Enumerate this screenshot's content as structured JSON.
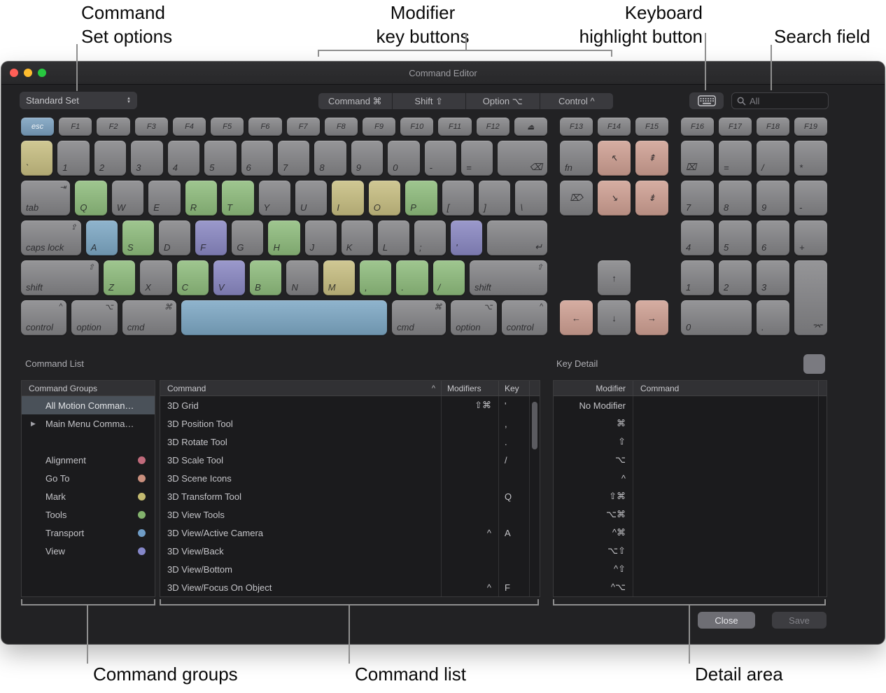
{
  "annotations": {
    "command_set": {
      "lines": [
        "Command",
        "Set options"
      ]
    },
    "modifier_keys": {
      "lines": [
        "Modifier",
        "key buttons"
      ]
    },
    "keyboard_highlight": {
      "lines": [
        "Keyboard",
        "highlight button"
      ]
    },
    "search_field": {
      "lines": [
        "Search field"
      ]
    },
    "command_groups": {
      "lines": [
        "Command groups"
      ]
    },
    "command_list": {
      "lines": [
        "Command list"
      ]
    },
    "detail_area": {
      "lines": [
        "Detail area"
      ]
    }
  },
  "window": {
    "title": "Command Editor",
    "toolbar": {
      "command_set_value": "Standard Set",
      "modifiers": [
        {
          "label": "Command",
          "symbol": "⌘"
        },
        {
          "label": "Shift",
          "symbol": "⇧"
        },
        {
          "label": "Option",
          "symbol": "⌥"
        },
        {
          "label": "Control",
          "symbol": "^"
        }
      ],
      "search_placeholder": "All"
    },
    "section_labels": {
      "command_list": "Command List",
      "key_detail": "Key Detail"
    },
    "buttons": {
      "close": "Close",
      "save": "Save"
    }
  },
  "colors": {
    "keys": {
      "gray": "#848487",
      "esc": "#7ba1c0",
      "tools": "#8fbd7d",
      "mark": "#c8bf82",
      "transport": "#7da8c5",
      "view": "#8a88c3",
      "go_to": "#cfa093"
    },
    "categories": {
      "alignment": "#c06a7b",
      "go_to": "#c98f7d",
      "mark": "#c3ba70",
      "tools": "#83b36d",
      "transport": "#6f9cc6",
      "view": "#8587c9"
    }
  },
  "keyboard": {
    "main": [
      [
        {
          "l": "esc",
          "c": "esc",
          "p": "c",
          "n": "esc"
        },
        {
          "l": "F1",
          "p": "c"
        },
        {
          "l": "F2",
          "p": "c"
        },
        {
          "l": "F3",
          "p": "c"
        },
        {
          "l": "F4",
          "p": "c"
        },
        {
          "l": "F5",
          "p": "c"
        },
        {
          "l": "F6",
          "p": "c"
        },
        {
          "l": "F7",
          "p": "c"
        },
        {
          "l": "F8",
          "p": "c"
        },
        {
          "l": "F9",
          "p": "c"
        },
        {
          "l": "F10",
          "p": "c"
        },
        {
          "l": "F11",
          "p": "c"
        },
        {
          "l": "F12",
          "p": "c"
        },
        {
          "l": "⏏",
          "p": "c",
          "n": "eject"
        }
      ],
      [
        {
          "l": "`",
          "c": "mark",
          "n": "backtick"
        },
        {
          "l": "1"
        },
        {
          "l": "2"
        },
        {
          "l": "3"
        },
        {
          "l": "4"
        },
        {
          "l": "5"
        },
        {
          "l": "6"
        },
        {
          "l": "7"
        },
        {
          "l": "8"
        },
        {
          "l": "9"
        },
        {
          "l": "0"
        },
        {
          "l": "-",
          "n": "minus"
        },
        {
          "l": "=",
          "n": "equals"
        },
        {
          "l": "⌫",
          "w": 1.55,
          "p": "br",
          "n": "delete"
        }
      ],
      [
        {
          "l": "tab",
          "s": "⇥",
          "w": 1.55,
          "n": "tab"
        },
        {
          "l": "Q",
          "c": "tools"
        },
        {
          "l": "W"
        },
        {
          "l": "E"
        },
        {
          "l": "R",
          "c": "tools"
        },
        {
          "l": "T",
          "c": "tools"
        },
        {
          "l": "Y"
        },
        {
          "l": "U"
        },
        {
          "l": "I",
          "c": "mark"
        },
        {
          "l": "O",
          "c": "mark"
        },
        {
          "l": "P",
          "c": "tools"
        },
        {
          "l": "[",
          "n": "left-bracket"
        },
        {
          "l": "]",
          "n": "right-bracket"
        },
        {
          "l": "\\",
          "n": "backslash"
        }
      ],
      [
        {
          "l": "caps lock",
          "s": "⇪",
          "w": 1.9,
          "n": "caps-lock"
        },
        {
          "l": "A",
          "c": "transport"
        },
        {
          "l": "S",
          "c": "tools"
        },
        {
          "l": "D"
        },
        {
          "l": "F",
          "c": "view"
        },
        {
          "l": "G"
        },
        {
          "l": "H",
          "c": "tools"
        },
        {
          "l": "J"
        },
        {
          "l": "K"
        },
        {
          "l": "L"
        },
        {
          "l": ";",
          "n": "semicolon"
        },
        {
          "l": "'",
          "c": "view",
          "n": "quote"
        },
        {
          "l": "↵",
          "w": 1.9,
          "p": "br",
          "n": "return"
        }
      ],
      [
        {
          "l": "shift",
          "s": "⇧",
          "w": 2.45,
          "n": "shift-left"
        },
        {
          "l": "Z",
          "c": "tools"
        },
        {
          "l": "X"
        },
        {
          "l": "C",
          "c": "tools"
        },
        {
          "l": "V",
          "c": "view"
        },
        {
          "l": "B",
          "c": "tools"
        },
        {
          "l": "N"
        },
        {
          "l": "M",
          "c": "mark"
        },
        {
          "l": ",",
          "c": "tools",
          "n": "comma"
        },
        {
          "l": ".",
          "c": "tools",
          "n": "period"
        },
        {
          "l": "/",
          "c": "tools",
          "n": "slash"
        },
        {
          "l": "shift",
          "s": "⇧",
          "w": 2.45,
          "n": "shift-right"
        }
      ],
      [
        {
          "l": "control",
          "s": "^",
          "w": 1.4,
          "n": "control-left"
        },
        {
          "l": "option",
          "s": "⌥",
          "w": 1.4,
          "n": "option-left"
        },
        {
          "l": "cmd",
          "s": "⌘",
          "w": 1.65,
          "n": "cmd-left"
        },
        {
          "l": "",
          "c": "transport",
          "w": 6.3,
          "n": "space"
        },
        {
          "l": "cmd",
          "s": "⌘",
          "w": 1.65,
          "n": "cmd-right"
        },
        {
          "l": "option",
          "s": "⌥",
          "w": 1.4,
          "n": "option-right"
        },
        {
          "l": "control",
          "s": "^",
          "w": 1.4,
          "n": "control-right"
        }
      ]
    ],
    "nav": [
      {
        "l": "F13",
        "p": "c",
        "gr": 1,
        "gc": 1
      },
      {
        "l": "F14",
        "p": "c",
        "gr": 1,
        "gc": 2
      },
      {
        "l": "F15",
        "p": "c",
        "gr": 1,
        "gc": 3
      },
      {
        "l": "fn",
        "gr": 2,
        "gc": 1,
        "n": "fn"
      },
      {
        "l": "↖",
        "c": "go_to",
        "p": "c",
        "gr": 2,
        "gc": 2,
        "n": "home"
      },
      {
        "l": "⇞",
        "c": "go_to",
        "p": "c",
        "gr": 2,
        "gc": 3,
        "n": "page-up"
      },
      {
        "l": "⌦",
        "p": "c",
        "gr": 3,
        "gc": 1,
        "n": "forward-delete"
      },
      {
        "l": "↘",
        "c": "go_to",
        "p": "c",
        "gr": 3,
        "gc": 2,
        "n": "end"
      },
      {
        "l": "⇟",
        "c": "go_to",
        "p": "c",
        "gr": 3,
        "gc": 3,
        "n": "page-down"
      },
      {
        "l": "↑",
        "p": "c",
        "gr": 5,
        "gc": 2,
        "n": "arrow-up"
      },
      {
        "l": "←",
        "c": "go_to",
        "p": "c",
        "gr": 6,
        "gc": 1,
        "n": "arrow-left"
      },
      {
        "l": "↓",
        "p": "c",
        "gr": 6,
        "gc": 2,
        "n": "arrow-down"
      },
      {
        "l": "→",
        "c": "go_to",
        "p": "c",
        "gr": 6,
        "gc": 3,
        "n": "arrow-right"
      }
    ],
    "numpad": [
      {
        "l": "F16",
        "p": "c",
        "gr": 1,
        "gc": 1
      },
      {
        "l": "F17",
        "p": "c",
        "gr": 1,
        "gc": 2
      },
      {
        "l": "F18",
        "p": "c",
        "gr": 1,
        "gc": 3
      },
      {
        "l": "F19",
        "p": "c",
        "gr": 1,
        "gc": 4
      },
      {
        "l": "⌧",
        "gr": 2,
        "gc": 1,
        "n": "numpad-clear"
      },
      {
        "l": "=",
        "gr": 2,
        "gc": 2,
        "n": "numpad-equals"
      },
      {
        "l": "/",
        "gr": 2,
        "gc": 3,
        "n": "numpad-divide"
      },
      {
        "l": "*",
        "gr": 2,
        "gc": 4,
        "n": "numpad-multiply"
      },
      {
        "l": "7",
        "gr": 3,
        "gc": 1,
        "n": "numpad-7"
      },
      {
        "l": "8",
        "gr": 3,
        "gc": 2,
        "n": "numpad-8"
      },
      {
        "l": "9",
        "gr": 3,
        "gc": 3,
        "n": "numpad-9"
      },
      {
        "l": "-",
        "gr": 3,
        "gc": 4,
        "n": "numpad-minus"
      },
      {
        "l": "4",
        "gr": 4,
        "gc": 1,
        "n": "numpad-4"
      },
      {
        "l": "5",
        "gr": 4,
        "gc": 2,
        "n": "numpad-5"
      },
      {
        "l": "6",
        "gr": 4,
        "gc": 3,
        "n": "numpad-6"
      },
      {
        "l": "+",
        "gr": 4,
        "gc": 4,
        "n": "numpad-plus"
      },
      {
        "l": "1",
        "gr": 5,
        "gc": 1,
        "n": "numpad-1"
      },
      {
        "l": "2",
        "gr": 5,
        "gc": 2,
        "n": "numpad-2"
      },
      {
        "l": "3",
        "gr": 5,
        "gc": 3,
        "n": "numpad-3"
      },
      {
        "l": "⌤",
        "gr": 5,
        "gc": 4,
        "rs": 2,
        "p": "br",
        "n": "numpad-enter"
      },
      {
        "l": "0",
        "gr": 6,
        "gc": 1,
        "cs": 2,
        "n": "numpad-0"
      },
      {
        "l": ".",
        "gr": 6,
        "gc": 3,
        "n": "numpad-point"
      }
    ]
  },
  "command_groups": {
    "header": "Command Groups",
    "rows": [
      {
        "label": "All Motion Comman…",
        "selected": true
      },
      {
        "label": "Main Menu Comma…",
        "disclosure": true
      },
      {
        "spacer": true
      },
      {
        "label": "Alignment",
        "dot": "alignment"
      },
      {
        "label": "Go To",
        "dot": "go_to"
      },
      {
        "label": "Mark",
        "dot": "mark"
      },
      {
        "label": "Tools",
        "dot": "tools"
      },
      {
        "label": "Transport",
        "dot": "transport"
      },
      {
        "label": "View",
        "dot": "view"
      }
    ]
  },
  "command_table": {
    "columns": [
      "Command",
      "Modifiers",
      "Key"
    ],
    "sort_indicator": "^",
    "rows": [
      {
        "command": "3D Grid",
        "modifiers": "⇧⌘",
        "key": "'"
      },
      {
        "command": "3D Position Tool",
        "modifiers": "",
        "key": ","
      },
      {
        "command": "3D Rotate Tool",
        "modifiers": "",
        "key": "."
      },
      {
        "command": "3D Scale Tool",
        "modifiers": "",
        "key": "/"
      },
      {
        "command": "3D Scene Icons",
        "modifiers": "",
        "key": ""
      },
      {
        "command": "3D Transform Tool",
        "modifiers": "",
        "key": "Q"
      },
      {
        "command": "3D View Tools",
        "modifiers": "",
        "key": ""
      },
      {
        "command": "3D View/Active Camera",
        "modifiers": "^",
        "key": "A"
      },
      {
        "command": "3D View/Back",
        "modifiers": "",
        "key": ""
      },
      {
        "command": "3D View/Bottom",
        "modifiers": "",
        "key": ""
      },
      {
        "command": "3D View/Focus On Object",
        "modifiers": "^",
        "key": "F"
      }
    ]
  },
  "key_detail": {
    "columns": [
      "Modifier",
      "Command"
    ],
    "rows": [
      "No Modifier",
      "⌘",
      "⇧",
      "⌥",
      "^",
      "⇧⌘",
      "⌥⌘",
      "^⌘",
      "⌥⇧",
      "^⇧",
      "^⌥"
    ]
  }
}
